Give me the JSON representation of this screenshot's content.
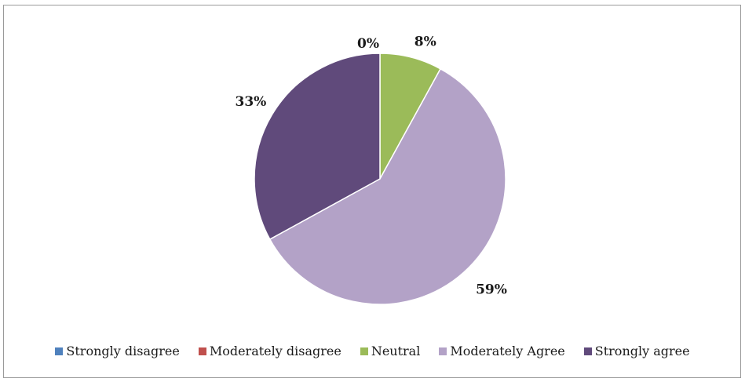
{
  "chart_data": {
    "type": "pie",
    "categories": [
      "Strongly disagree",
      "Moderately disagree",
      "Neutral",
      "Moderately Agree",
      "Strongly agree"
    ],
    "values": [
      0,
      0,
      8,
      59,
      33
    ],
    "data_labels": [
      "",
      "0%",
      "8%",
      "59%",
      "33%"
    ],
    "colors": [
      "#4f81bd",
      "#c0504d",
      "#9bbb59",
      "#b3a2c7",
      "#604a7b"
    ],
    "legend": "bottom"
  }
}
